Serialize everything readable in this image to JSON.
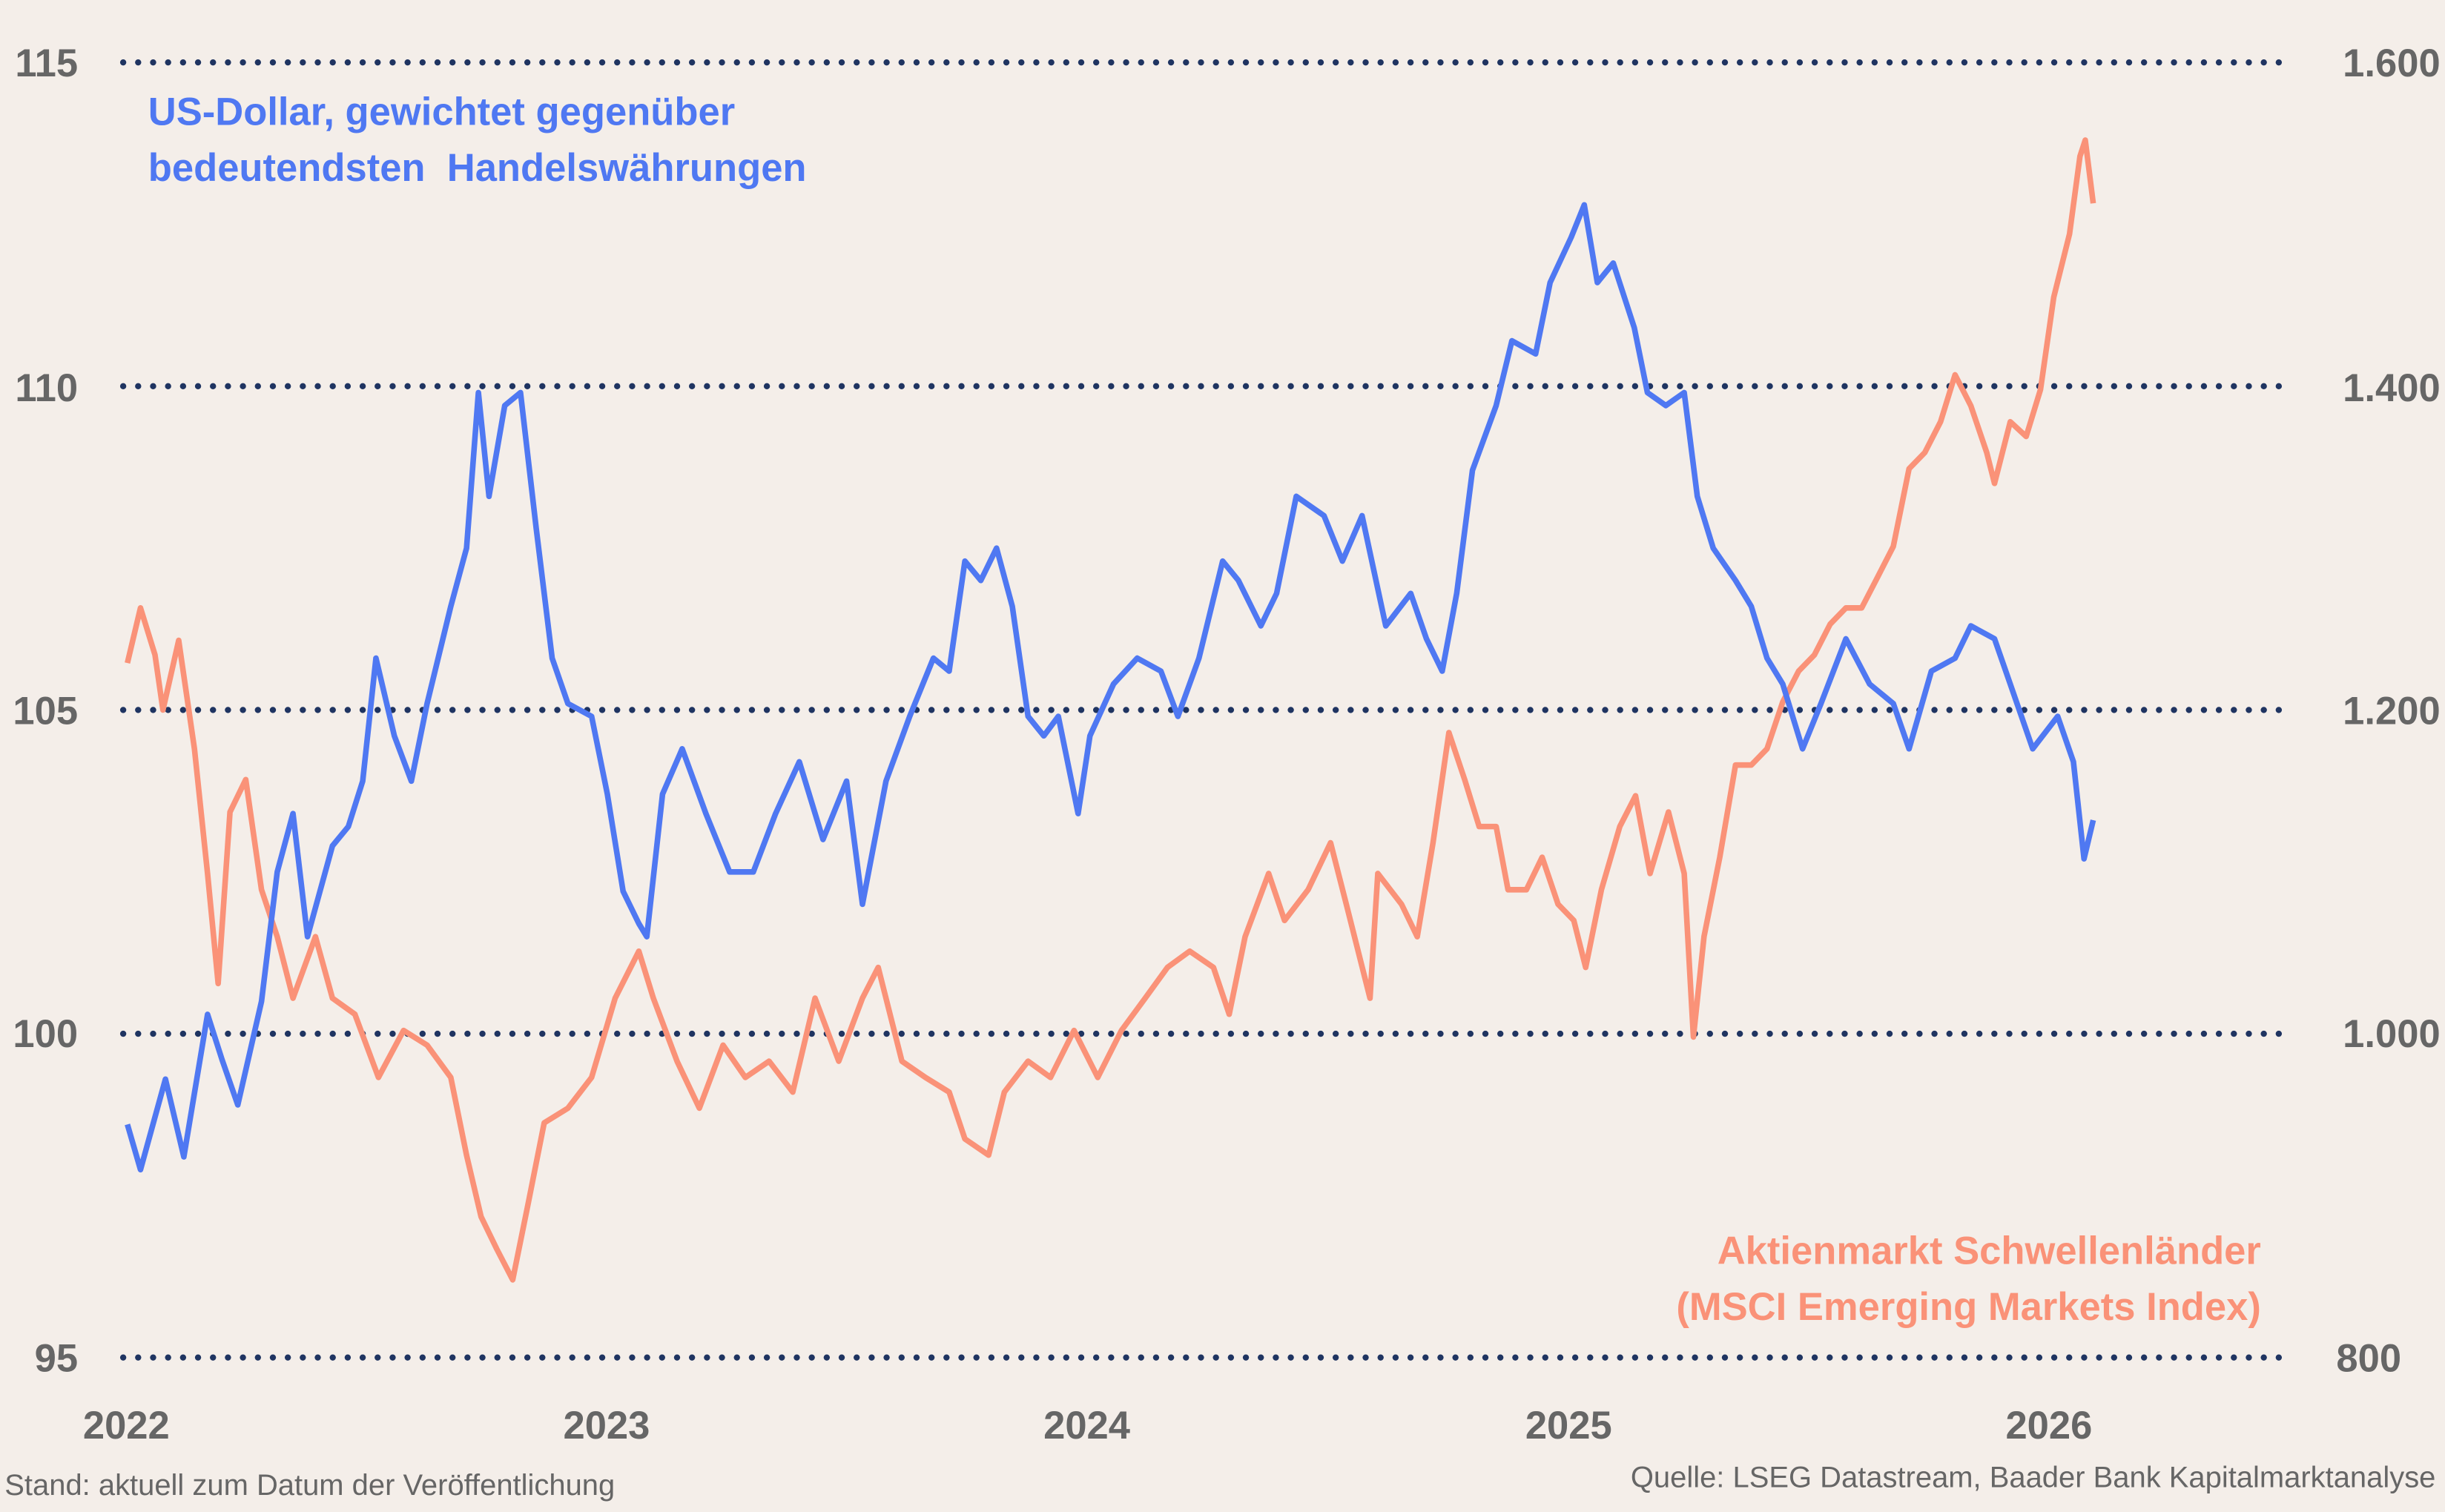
{
  "chart_data": {
    "type": "line",
    "title": "",
    "xlabel": "",
    "ylabel": "",
    "x_ticks": [
      "2022",
      "2023",
      "2024",
      "2025",
      "2026"
    ],
    "y_left": {
      "ticks": [
        "95",
        "100",
        "105",
        "110",
        "115"
      ],
      "lim": [
        95,
        115
      ]
    },
    "y_right": {
      "ticks": [
        "800",
        "1.000",
        "1.200",
        "1.400",
        "1.600"
      ],
      "lim": [
        800,
        1600
      ]
    },
    "grid": true,
    "colors": {
      "usd": "#4f78f2",
      "em": "#fa9278",
      "grid": "#1f3461",
      "background": "#f4eee9",
      "tick": "#666666"
    },
    "series": [
      {
        "name": "US-Dollar, gewichtet gegenüber bedeutendsten Handelswährungen",
        "name_lines": [
          "US-Dollar, gewichtet gegenüber",
          "bedeutendsten  Handelswährungen"
        ],
        "axis": "left",
        "points": [
          [
            "2022-01-03",
            98.6
          ],
          [
            "2022-01-13",
            97.9
          ],
          [
            "2022-02-01",
            99.3
          ],
          [
            "2022-02-15",
            98.1
          ],
          [
            "2022-03-05",
            100.3
          ],
          [
            "2022-03-16",
            99.6
          ],
          [
            "2022-03-28",
            98.9
          ],
          [
            "2022-04-15",
            100.5
          ],
          [
            "2022-04-27",
            102.5
          ],
          [
            "2022-05-09",
            103.4
          ],
          [
            "2022-05-20",
            101.5
          ],
          [
            "2022-06-08",
            102.9
          ],
          [
            "2022-06-20",
            103.2
          ],
          [
            "2022-07-01",
            103.9
          ],
          [
            "2022-07-11",
            105.8
          ],
          [
            "2022-07-25",
            104.6
          ],
          [
            "2022-08-07",
            103.9
          ],
          [
            "2022-08-19",
            105.1
          ],
          [
            "2022-09-06",
            106.6
          ],
          [
            "2022-09-18",
            107.5
          ],
          [
            "2022-09-27",
            109.9
          ],
          [
            "2022-10-05",
            108.3
          ],
          [
            "2022-10-17",
            109.7
          ],
          [
            "2022-10-29",
            109.9
          ],
          [
            "2022-11-10",
            107.8
          ],
          [
            "2022-11-22",
            105.8
          ],
          [
            "2022-12-04",
            105.1
          ],
          [
            "2022-12-22",
            104.9
          ],
          [
            "2023-01-03",
            103.7
          ],
          [
            "2023-01-15",
            102.2
          ],
          [
            "2023-01-27",
            101.7
          ],
          [
            "2023-02-02",
            101.5
          ],
          [
            "2023-02-14",
            103.7
          ],
          [
            "2023-03-01",
            104.4
          ],
          [
            "2023-03-19",
            103.4
          ],
          [
            "2023-04-06",
            102.5
          ],
          [
            "2023-04-24",
            102.5
          ],
          [
            "2023-05-11",
            103.4
          ],
          [
            "2023-05-29",
            104.2
          ],
          [
            "2023-06-16",
            103.0
          ],
          [
            "2023-07-04",
            103.9
          ],
          [
            "2023-07-16",
            102.0
          ],
          [
            "2023-08-03",
            103.9
          ],
          [
            "2023-08-21",
            104.9
          ],
          [
            "2023-09-08",
            105.8
          ],
          [
            "2023-09-20",
            105.6
          ],
          [
            "2023-10-02",
            107.3
          ],
          [
            "2023-10-14",
            107.0
          ],
          [
            "2023-10-26",
            107.5
          ],
          [
            "2023-11-07",
            106.6
          ],
          [
            "2023-11-19",
            104.9
          ],
          [
            "2023-12-01",
            104.6
          ],
          [
            "2023-12-12",
            104.9
          ],
          [
            "2023-12-27",
            103.4
          ],
          [
            "2024-01-05",
            104.6
          ],
          [
            "2024-01-23",
            105.4
          ],
          [
            "2024-02-10",
            105.8
          ],
          [
            "2024-02-28",
            105.6
          ],
          [
            "2024-03-12",
            104.9
          ],
          [
            "2024-03-28",
            105.8
          ],
          [
            "2024-04-15",
            107.3
          ],
          [
            "2024-04-27",
            107.0
          ],
          [
            "2024-05-14",
            106.3
          ],
          [
            "2024-05-26",
            106.8
          ],
          [
            "2024-06-10",
            108.3
          ],
          [
            "2024-07-01",
            108.0
          ],
          [
            "2024-07-15",
            107.3
          ],
          [
            "2024-07-30",
            108.0
          ],
          [
            "2024-08-17",
            106.3
          ],
          [
            "2024-09-05",
            106.8
          ],
          [
            "2024-09-17",
            106.1
          ],
          [
            "2024-09-29",
            105.6
          ],
          [
            "2024-10-10",
            106.8
          ],
          [
            "2024-10-22",
            108.7
          ],
          [
            "2024-11-09",
            109.7
          ],
          [
            "2024-11-21",
            110.7
          ],
          [
            "2024-12-09",
            110.5
          ],
          [
            "2024-12-20",
            111.6
          ],
          [
            "2025-01-05",
            112.3
          ],
          [
            "2025-01-15",
            112.8
          ],
          [
            "2025-01-25",
            111.6
          ],
          [
            "2025-02-06",
            111.9
          ],
          [
            "2025-02-22",
            110.9
          ],
          [
            "2025-03-04",
            109.9
          ],
          [
            "2025-03-18",
            109.7
          ],
          [
            "2025-04-01",
            109.9
          ],
          [
            "2025-04-11",
            108.3
          ],
          [
            "2025-04-23",
            107.5
          ],
          [
            "2025-05-10",
            107.0
          ],
          [
            "2025-05-22",
            106.6
          ],
          [
            "2025-06-03",
            105.8
          ],
          [
            "2025-06-15",
            105.4
          ],
          [
            "2025-06-30",
            104.4
          ],
          [
            "2025-07-14",
            105.1
          ],
          [
            "2025-08-02",
            106.1
          ],
          [
            "2025-08-20",
            105.4
          ],
          [
            "2025-09-07",
            105.1
          ],
          [
            "2025-09-19",
            104.4
          ],
          [
            "2025-10-06",
            105.6
          ],
          [
            "2025-10-24",
            105.8
          ],
          [
            "2025-11-05",
            106.3
          ],
          [
            "2025-11-23",
            106.1
          ],
          [
            "2025-12-05",
            105.4
          ],
          [
            "2025-12-22",
            104.4
          ],
          [
            "2026-01-10",
            104.9
          ],
          [
            "2026-01-22",
            104.2
          ],
          [
            "2026-01-30",
            102.7
          ],
          [
            "2026-02-06",
            103.3
          ]
        ]
      },
      {
        "name": "Aktienmarkt Schwellenländer (MSCI Emerging Markets Index)",
        "name_lines": [
          "Aktienmarkt Schwellenländer",
          "(MSCI Emerging Markets Index)"
        ],
        "axis": "right",
        "points": [
          [
            "2022-01-03",
            1229
          ],
          [
            "2022-01-13",
            1263
          ],
          [
            "2022-01-24",
            1234
          ],
          [
            "2022-01-30",
            1200
          ],
          [
            "2022-02-11",
            1243
          ],
          [
            "2022-02-23",
            1176
          ],
          [
            "2022-03-05",
            1099
          ],
          [
            "2022-03-13",
            1031
          ],
          [
            "2022-03-22",
            1137
          ],
          [
            "2022-04-03",
            1157
          ],
          [
            "2022-04-15",
            1089
          ],
          [
            "2022-04-27",
            1060
          ],
          [
            "2022-05-09",
            1022
          ],
          [
            "2022-05-26",
            1060
          ],
          [
            "2022-06-08",
            1022
          ],
          [
            "2022-06-25",
            1012
          ],
          [
            "2022-07-13",
            973
          ],
          [
            "2022-08-01",
            1002
          ],
          [
            "2022-08-19",
            993
          ],
          [
            "2022-09-06",
            973
          ],
          [
            "2022-09-18",
            925
          ],
          [
            "2022-09-29",
            887
          ],
          [
            "2022-10-11",
            867
          ],
          [
            "2022-10-23",
            848
          ],
          [
            "2022-11-04",
            896
          ],
          [
            "2022-11-16",
            945
          ],
          [
            "2022-12-04",
            954
          ],
          [
            "2022-12-22",
            973
          ],
          [
            "2023-01-09",
            1022
          ],
          [
            "2023-01-27",
            1051
          ],
          [
            "2023-02-07",
            1022
          ],
          [
            "2023-02-25",
            983
          ],
          [
            "2023-03-14",
            954
          ],
          [
            "2023-04-01",
            993
          ],
          [
            "2023-04-18",
            973
          ],
          [
            "2023-05-06",
            983
          ],
          [
            "2023-05-24",
            964
          ],
          [
            "2023-06-10",
            1022
          ],
          [
            "2023-06-28",
            983
          ],
          [
            "2023-07-16",
            1022
          ],
          [
            "2023-07-28",
            1041
          ],
          [
            "2023-08-15",
            983
          ],
          [
            "2023-09-02",
            973
          ],
          [
            "2023-09-20",
            964
          ],
          [
            "2023-10-02",
            935
          ],
          [
            "2023-10-20",
            925
          ],
          [
            "2023-11-01",
            964
          ],
          [
            "2023-11-19",
            983
          ],
          [
            "2023-12-06",
            973
          ],
          [
            "2023-12-24",
            1002
          ],
          [
            "2024-01-11",
            973
          ],
          [
            "2024-01-29",
            1002
          ],
          [
            "2024-02-16",
            1022
          ],
          [
            "2024-03-04",
            1041
          ],
          [
            "2024-03-21",
            1051
          ],
          [
            "2024-04-08",
            1041
          ],
          [
            "2024-04-20",
            1012
          ],
          [
            "2024-05-02",
            1060
          ],
          [
            "2024-05-20",
            1099
          ],
          [
            "2024-06-01",
            1070
          ],
          [
            "2024-06-19",
            1089
          ],
          [
            "2024-07-06",
            1118
          ],
          [
            "2024-07-18",
            1080
          ],
          [
            "2024-08-05",
            1022
          ],
          [
            "2024-08-11",
            1099
          ],
          [
            "2024-08-29",
            1080
          ],
          [
            "2024-09-10",
            1060
          ],
          [
            "2024-09-22",
            1118
          ],
          [
            "2024-10-04",
            1186
          ],
          [
            "2024-10-16",
            1157
          ],
          [
            "2024-10-27",
            1128
          ],
          [
            "2024-11-09",
            1128
          ],
          [
            "2024-11-18",
            1089
          ],
          [
            "2024-12-02",
            1089
          ],
          [
            "2024-12-14",
            1109
          ],
          [
            "2024-12-26",
            1080
          ],
          [
            "2025-01-07",
            1070
          ],
          [
            "2025-01-16",
            1041
          ],
          [
            "2025-01-28",
            1089
          ],
          [
            "2025-02-11",
            1128
          ],
          [
            "2025-02-23",
            1147
          ],
          [
            "2025-03-06",
            1099
          ],
          [
            "2025-03-20",
            1137
          ],
          [
            "2025-04-01",
            1099
          ],
          [
            "2025-04-08",
            998
          ],
          [
            "2025-04-16",
            1060
          ],
          [
            "2025-04-28",
            1109
          ],
          [
            "2025-05-10",
            1166
          ],
          [
            "2025-05-22",
            1166
          ],
          [
            "2025-06-03",
            1176
          ],
          [
            "2025-06-15",
            1205
          ],
          [
            "2025-06-27",
            1224
          ],
          [
            "2025-07-09",
            1234
          ],
          [
            "2025-07-21",
            1253
          ],
          [
            "2025-08-02",
            1263
          ],
          [
            "2025-08-14",
            1263
          ],
          [
            "2025-08-26",
            1282
          ],
          [
            "2025-09-07",
            1301
          ],
          [
            "2025-09-19",
            1349
          ],
          [
            "2025-10-01",
            1359
          ],
          [
            "2025-10-13",
            1378
          ],
          [
            "2025-10-24",
            1407
          ],
          [
            "2025-11-05",
            1388
          ],
          [
            "2025-11-17",
            1359
          ],
          [
            "2025-11-23",
            1340
          ],
          [
            "2025-12-05",
            1378
          ],
          [
            "2025-12-17",
            1369
          ],
          [
            "2025-12-28",
            1398
          ],
          [
            "2026-01-07",
            1455
          ],
          [
            "2026-01-19",
            1494
          ],
          [
            "2026-01-27",
            1542
          ],
          [
            "2026-01-31",
            1552
          ],
          [
            "2026-02-06",
            1513
          ]
        ]
      }
    ]
  },
  "footer": {
    "left": "Stand: aktuell zum Datum der Veröffentlichung",
    "right": "Quelle: LSEG Datastream, Baader Bank Kapitalmarktanalyse"
  }
}
